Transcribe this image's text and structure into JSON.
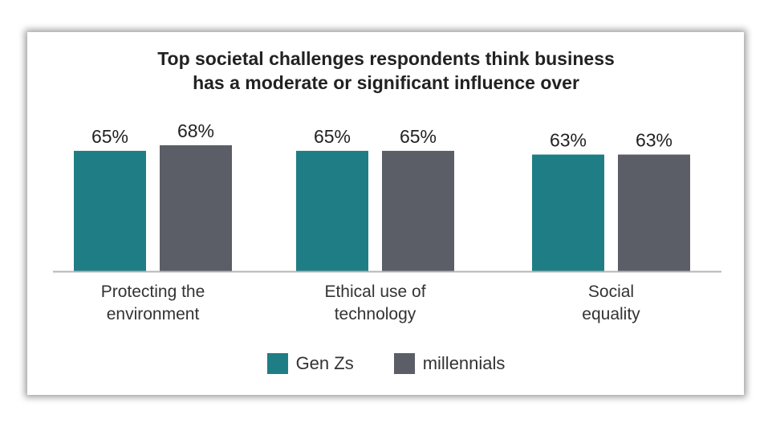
{
  "chart_data": {
    "type": "bar",
    "title_lines": [
      "Top societal challenges respondents think business",
      "has a moderate or significant influence over"
    ],
    "categories": [
      [
        "Protecting the",
        "environment"
      ],
      [
        "Ethical use of",
        "technology"
      ],
      [
        "Social",
        "equality"
      ]
    ],
    "series": [
      {
        "name": "Gen Zs",
        "color": "#1f7e85",
        "values": [
          65,
          65,
          63
        ],
        "labels": [
          "65%",
          "65%",
          "63%"
        ]
      },
      {
        "name": "millennials",
        "color": "#5b5e66",
        "values": [
          68,
          65,
          63
        ],
        "labels": [
          "68%",
          "65%",
          "63%"
        ]
      }
    ],
    "ylim": [
      0,
      68
    ],
    "unit": "%",
    "grid": false,
    "legend_position": "bottom-center"
  }
}
